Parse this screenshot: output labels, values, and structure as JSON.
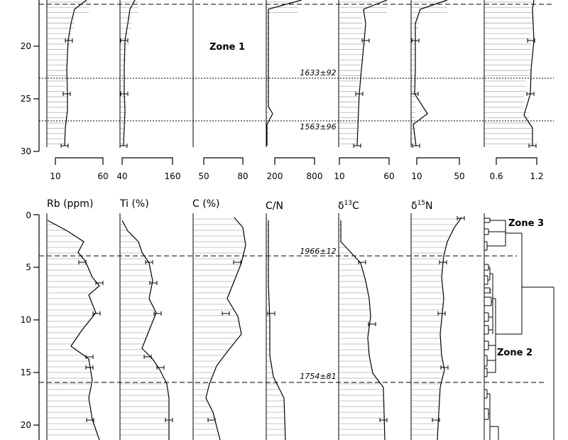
{
  "chart_data": {
    "type": "line",
    "layout": "stratigraphic depth profiles (depth increases downward)",
    "upper_panel": {
      "depth_axis": {
        "ticks": [
          "20",
          "25",
          "30"
        ]
      },
      "panel_axes": [
        {
          "ticks": [
            "10",
            "60"
          ]
        },
        {
          "ticks": [
            "40",
            "160"
          ]
        },
        {
          "ticks": [
            "50",
            "80"
          ]
        },
        {
          "ticks": [
            "200",
            "800"
          ]
        },
        {
          "ticks": [
            "10",
            "60"
          ]
        },
        {
          "ticks": [
            "10",
            "50"
          ]
        },
        {
          "ticks": [
            "0.6",
            "1.2"
          ]
        }
      ],
      "zone_label": "Zone 1",
      "dates": [
        {
          "label": "1633±92",
          "depth": 23,
          "style": "dotted"
        },
        {
          "label": "1563±96",
          "depth": 27,
          "style": "dotted"
        }
      ]
    },
    "lower_panel": {
      "depth_axis": {
        "ticks": [
          "0",
          "5",
          "10",
          "15",
          "20"
        ]
      },
      "series": [
        {
          "name_parts": [
            "Rb (ppm)"
          ]
        },
        {
          "name_parts": [
            "Ti (%)"
          ]
        },
        {
          "name_parts": [
            "C (%)"
          ]
        },
        {
          "name_parts": [
            "C/N"
          ]
        },
        {
          "name_parts": [
            "δ",
            "13",
            "C"
          ]
        },
        {
          "name_parts": [
            "δ",
            "15",
            "N"
          ]
        }
      ],
      "dates": [
        {
          "label": "1966±12",
          "depth": 4,
          "style": "dashed"
        },
        {
          "label": "1754±81",
          "depth": 16,
          "style": "dashed"
        }
      ],
      "cluster_labels": [
        "Zone 3",
        "Zone 2"
      ]
    }
  }
}
